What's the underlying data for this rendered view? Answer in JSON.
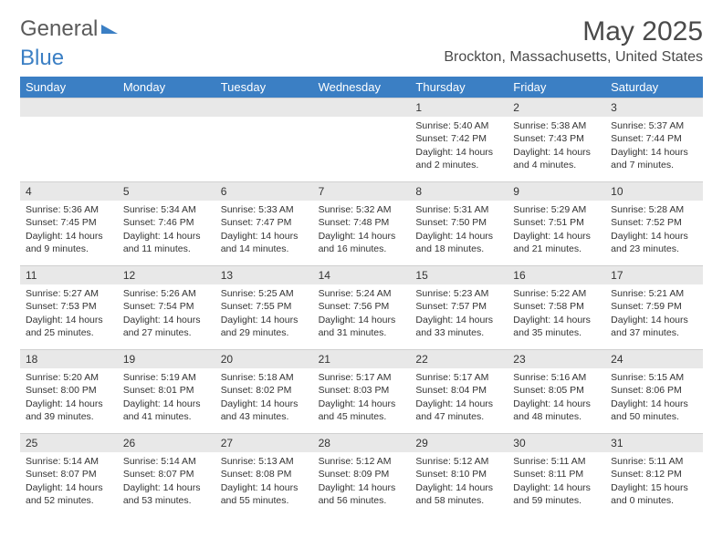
{
  "brand": {
    "part1": "General",
    "part2": "Blue"
  },
  "title": "May 2025",
  "location": "Brockton, Massachusetts, United States",
  "colors": {
    "header_bg": "#3b7fc4",
    "header_text": "#ffffff",
    "daynum_bg": "#e8e8e8",
    "border": "#d0d0d0",
    "text": "#333333",
    "page_bg": "#ffffff"
  },
  "dayNames": [
    "Sunday",
    "Monday",
    "Tuesday",
    "Wednesday",
    "Thursday",
    "Friday",
    "Saturday"
  ],
  "startOffset": 4,
  "daysInMonth": 31,
  "days": {
    "1": {
      "sunrise": "5:40 AM",
      "sunset": "7:42 PM",
      "daylight": "14 hours and 2 minutes."
    },
    "2": {
      "sunrise": "5:38 AM",
      "sunset": "7:43 PM",
      "daylight": "14 hours and 4 minutes."
    },
    "3": {
      "sunrise": "5:37 AM",
      "sunset": "7:44 PM",
      "daylight": "14 hours and 7 minutes."
    },
    "4": {
      "sunrise": "5:36 AM",
      "sunset": "7:45 PM",
      "daylight": "14 hours and 9 minutes."
    },
    "5": {
      "sunrise": "5:34 AM",
      "sunset": "7:46 PM",
      "daylight": "14 hours and 11 minutes."
    },
    "6": {
      "sunrise": "5:33 AM",
      "sunset": "7:47 PM",
      "daylight": "14 hours and 14 minutes."
    },
    "7": {
      "sunrise": "5:32 AM",
      "sunset": "7:48 PM",
      "daylight": "14 hours and 16 minutes."
    },
    "8": {
      "sunrise": "5:31 AM",
      "sunset": "7:50 PM",
      "daylight": "14 hours and 18 minutes."
    },
    "9": {
      "sunrise": "5:29 AM",
      "sunset": "7:51 PM",
      "daylight": "14 hours and 21 minutes."
    },
    "10": {
      "sunrise": "5:28 AM",
      "sunset": "7:52 PM",
      "daylight": "14 hours and 23 minutes."
    },
    "11": {
      "sunrise": "5:27 AM",
      "sunset": "7:53 PM",
      "daylight": "14 hours and 25 minutes."
    },
    "12": {
      "sunrise": "5:26 AM",
      "sunset": "7:54 PM",
      "daylight": "14 hours and 27 minutes."
    },
    "13": {
      "sunrise": "5:25 AM",
      "sunset": "7:55 PM",
      "daylight": "14 hours and 29 minutes."
    },
    "14": {
      "sunrise": "5:24 AM",
      "sunset": "7:56 PM",
      "daylight": "14 hours and 31 minutes."
    },
    "15": {
      "sunrise": "5:23 AM",
      "sunset": "7:57 PM",
      "daylight": "14 hours and 33 minutes."
    },
    "16": {
      "sunrise": "5:22 AM",
      "sunset": "7:58 PM",
      "daylight": "14 hours and 35 minutes."
    },
    "17": {
      "sunrise": "5:21 AM",
      "sunset": "7:59 PM",
      "daylight": "14 hours and 37 minutes."
    },
    "18": {
      "sunrise": "5:20 AM",
      "sunset": "8:00 PM",
      "daylight": "14 hours and 39 minutes."
    },
    "19": {
      "sunrise": "5:19 AM",
      "sunset": "8:01 PM",
      "daylight": "14 hours and 41 minutes."
    },
    "20": {
      "sunrise": "5:18 AM",
      "sunset": "8:02 PM",
      "daylight": "14 hours and 43 minutes."
    },
    "21": {
      "sunrise": "5:17 AM",
      "sunset": "8:03 PM",
      "daylight": "14 hours and 45 minutes."
    },
    "22": {
      "sunrise": "5:17 AM",
      "sunset": "8:04 PM",
      "daylight": "14 hours and 47 minutes."
    },
    "23": {
      "sunrise": "5:16 AM",
      "sunset": "8:05 PM",
      "daylight": "14 hours and 48 minutes."
    },
    "24": {
      "sunrise": "5:15 AM",
      "sunset": "8:06 PM",
      "daylight": "14 hours and 50 minutes."
    },
    "25": {
      "sunrise": "5:14 AM",
      "sunset": "8:07 PM",
      "daylight": "14 hours and 52 minutes."
    },
    "26": {
      "sunrise": "5:14 AM",
      "sunset": "8:07 PM",
      "daylight": "14 hours and 53 minutes."
    },
    "27": {
      "sunrise": "5:13 AM",
      "sunset": "8:08 PM",
      "daylight": "14 hours and 55 minutes."
    },
    "28": {
      "sunrise": "5:12 AM",
      "sunset": "8:09 PM",
      "daylight": "14 hours and 56 minutes."
    },
    "29": {
      "sunrise": "5:12 AM",
      "sunset": "8:10 PM",
      "daylight": "14 hours and 58 minutes."
    },
    "30": {
      "sunrise": "5:11 AM",
      "sunset": "8:11 PM",
      "daylight": "14 hours and 59 minutes."
    },
    "31": {
      "sunrise": "5:11 AM",
      "sunset": "8:12 PM",
      "daylight": "15 hours and 0 minutes."
    }
  },
  "labels": {
    "sunrise": "Sunrise:",
    "sunset": "Sunset:",
    "daylight": "Daylight:"
  }
}
